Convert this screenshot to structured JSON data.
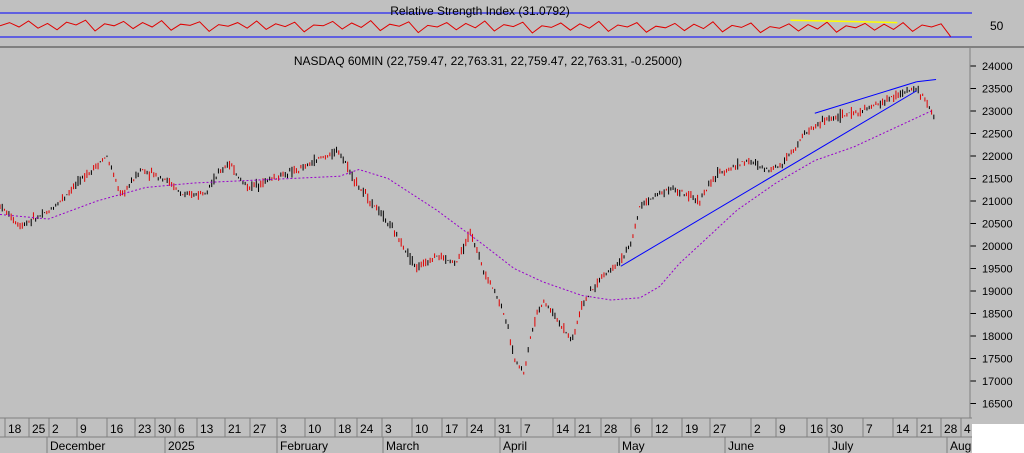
{
  "chart_data": [
    {
      "type": "line",
      "title": "Relative Strength Index (31.0792)",
      "y_ticks": [
        "50"
      ],
      "reference_lines": [
        70,
        30
      ],
      "colors": {
        "rsi": "#e00000",
        "bands": "#0000ff",
        "trend": "#ffff00"
      },
      "series": [
        {
          "values": [
            58,
            66,
            55,
            70,
            52,
            64,
            48,
            67,
            60,
            72,
            45,
            63,
            58,
            69,
            51,
            66,
            55,
            71,
            47,
            62,
            59,
            68,
            44,
            61,
            57,
            66,
            52,
            70,
            49,
            63,
            56,
            67,
            43,
            60,
            58,
            69,
            50,
            65,
            54,
            71,
            46,
            62,
            57,
            68,
            41,
            59,
            55,
            66,
            48,
            64,
            53,
            70,
            45,
            61,
            56,
            67,
            40,
            58,
            54,
            65,
            47,
            63,
            52,
            69,
            44,
            60,
            55,
            66,
            42,
            57,
            53,
            64,
            46,
            62,
            51,
            68,
            43,
            59,
            54,
            65,
            41,
            56,
            52,
            63,
            45,
            61,
            50,
            67,
            42,
            58,
            53,
            64,
            47,
            62,
            49,
            66,
            44,
            60,
            55,
            63,
            31
          ]
        }
      ],
      "annotations": [
        {
          "type": "trendline",
          "from": [
            0.815,
            72
          ],
          "to": [
            0.925,
            66
          ]
        }
      ]
    },
    {
      "type": "candlestick",
      "title": "NASDAQ 60MIN (22,759.47, 22,763.31, 22,759.47, 22,763.31, -0.25000)",
      "ylim": [
        16000,
        24200
      ],
      "y_ticks": [
        16500,
        17000,
        17500,
        18000,
        18500,
        19000,
        19500,
        20000,
        20500,
        21000,
        21500,
        22000,
        22500,
        23000,
        23500,
        24000
      ],
      "x_day_labels": [
        "18",
        "25",
        "2",
        "9",
        "16",
        "23",
        "30",
        "6",
        "13",
        "21",
        "27",
        "3",
        "10",
        "18",
        "24",
        "3",
        "10",
        "17",
        "24",
        "31",
        "7",
        "14",
        "21",
        "28",
        "6",
        "12",
        "19",
        "27",
        "2",
        "9",
        "16",
        "30",
        "7",
        "14",
        "21",
        "28",
        "4"
      ],
      "x_month_labels": [
        "December",
        "2025",
        "February",
        "March",
        "April",
        "May",
        "June",
        "July",
        "Augu"
      ],
      "colors": {
        "up": "#000000",
        "down": "#e00000",
        "moving_average": "#9900cc",
        "trendline": "#0000ff"
      },
      "price_path": [
        [
          0,
          20900
        ],
        [
          0.02,
          20450
        ],
        [
          0.05,
          20750
        ],
        [
          0.08,
          21400
        ],
        [
          0.11,
          22000
        ],
        [
          0.125,
          21100
        ],
        [
          0.145,
          21700
        ],
        [
          0.17,
          21500
        ],
        [
          0.19,
          21100
        ],
        [
          0.21,
          21200
        ],
        [
          0.235,
          21850
        ],
        [
          0.255,
          21300
        ],
        [
          0.28,
          21500
        ],
        [
          0.31,
          21700
        ],
        [
          0.33,
          21950
        ],
        [
          0.35,
          22100
        ],
        [
          0.37,
          21300
        ],
        [
          0.39,
          20800
        ],
        [
          0.41,
          20200
        ],
        [
          0.43,
          19500
        ],
        [
          0.45,
          19800
        ],
        [
          0.47,
          19600
        ],
        [
          0.485,
          20300
        ],
        [
          0.5,
          19400
        ],
        [
          0.51,
          19000
        ],
        [
          0.52,
          18500
        ],
        [
          0.53,
          17500
        ],
        [
          0.54,
          17200
        ],
        [
          0.55,
          18300
        ],
        [
          0.56,
          18800
        ],
        [
          0.58,
          18200
        ],
        [
          0.59,
          17900
        ],
        [
          0.6,
          18700
        ],
        [
          0.62,
          19300
        ],
        [
          0.64,
          19700
        ],
        [
          0.65,
          20000
        ],
        [
          0.66,
          20900
        ],
        [
          0.69,
          21300
        ],
        [
          0.72,
          21000
        ],
        [
          0.74,
          21600
        ],
        [
          0.77,
          21900
        ],
        [
          0.79,
          21700
        ],
        [
          0.805,
          21800
        ],
        [
          0.83,
          22500
        ],
        [
          0.85,
          22800
        ],
        [
          0.87,
          22900
        ],
        [
          0.89,
          23000
        ],
        [
          0.91,
          23200
        ],
        [
          0.93,
          23400
        ],
        [
          0.945,
          23500
        ],
        [
          0.955,
          23200
        ],
        [
          0.965,
          22763
        ]
      ],
      "moving_average": [
        [
          0,
          20700
        ],
        [
          0.05,
          20600
        ],
        [
          0.1,
          21000
        ],
        [
          0.15,
          21300
        ],
        [
          0.2,
          21400
        ],
        [
          0.25,
          21450
        ],
        [
          0.3,
          21500
        ],
        [
          0.35,
          21550
        ],
        [
          0.37,
          21700
        ],
        [
          0.4,
          21500
        ],
        [
          0.45,
          20800
        ],
        [
          0.5,
          20000
        ],
        [
          0.53,
          19500
        ],
        [
          0.56,
          19200
        ],
        [
          0.6,
          18900
        ],
        [
          0.63,
          18800
        ],
        [
          0.66,
          18850
        ],
        [
          0.68,
          19100
        ],
        [
          0.7,
          19600
        ],
        [
          0.73,
          20200
        ],
        [
          0.76,
          20800
        ],
        [
          0.8,
          21400
        ],
        [
          0.84,
          21900
        ],
        [
          0.88,
          22200
        ],
        [
          0.91,
          22500
        ],
        [
          0.94,
          22800
        ],
        [
          0.96,
          23000
        ]
      ],
      "trendlines": [
        {
          "from": [
            0.64,
            19550
          ],
          "to": [
            0.945,
            23450
          ]
        },
        {
          "from": [
            0.84,
            22950
          ],
          "to": [
            0.945,
            23650
          ]
        },
        {
          "from": [
            0.945,
            23650
          ],
          "to": [
            0.965,
            23700
          ]
        }
      ]
    }
  ]
}
